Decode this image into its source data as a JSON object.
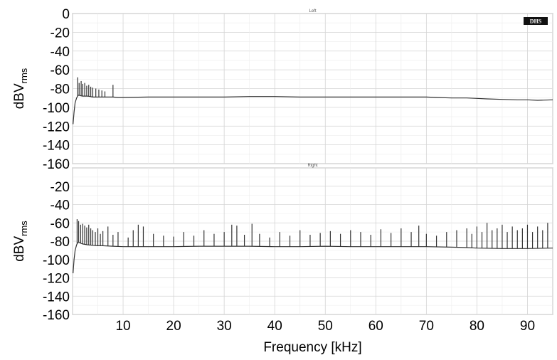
{
  "chart_data": [
    {
      "type": "line",
      "title": "Left",
      "xlabel": "Frequency [kHz]",
      "ylabel": "dBV",
      "ylabel_sub": "rms",
      "xlim": [
        0,
        95
      ],
      "ylim": [
        -160,
        0
      ],
      "x_ticks": [
        10,
        20,
        30,
        40,
        50,
        60,
        70,
        80,
        90
      ],
      "y_ticks": [
        0,
        -20,
        -40,
        -60,
        -80,
        -100,
        -120,
        -140,
        -160
      ],
      "grid": true,
      "logo": "DHS",
      "series": [
        {
          "x": [
            0.1,
            0.3,
            0.5,
            0.8,
            1.0,
            1.2,
            1.5,
            2.0,
            2.5,
            3.0,
            3.5,
            4.0,
            5.0,
            6.0,
            7.0,
            8.0,
            9.0,
            10,
            15,
            20,
            25,
            30,
            35,
            40,
            45,
            50,
            55,
            60,
            65,
            70,
            72,
            75,
            78,
            80,
            82,
            85,
            88,
            90,
            92,
            95
          ],
          "y": [
            -118,
            -105,
            -95,
            -90,
            -88,
            -87,
            -87.5,
            -88,
            -88,
            -88,
            -88.5,
            -89,
            -89,
            -89,
            -89,
            -89,
            -89.5,
            -89.5,
            -89,
            -89,
            -89,
            -89,
            -88.5,
            -88.5,
            -89,
            -89,
            -89,
            -89,
            -89,
            -89,
            -89.5,
            -90,
            -90,
            -90.5,
            -91,
            -91.5,
            -92,
            -92,
            -92.5,
            -92
          ]
        }
      ],
      "spikes": [
        {
          "x": 1.0,
          "y": -68
        },
        {
          "x": 1.3,
          "y": -74
        },
        {
          "x": 1.7,
          "y": -72
        },
        {
          "x": 2.0,
          "y": -75
        },
        {
          "x": 2.4,
          "y": -74
        },
        {
          "x": 2.8,
          "y": -77
        },
        {
          "x": 3.2,
          "y": -76
        },
        {
          "x": 3.6,
          "y": -78
        },
        {
          "x": 4.0,
          "y": -79
        },
        {
          "x": 4.6,
          "y": -80
        },
        {
          "x": 5.2,
          "y": -81
        },
        {
          "x": 5.8,
          "y": -82
        },
        {
          "x": 6.4,
          "y": -83
        },
        {
          "x": 8.0,
          "y": -76
        }
      ]
    },
    {
      "type": "line",
      "title": "Right",
      "xlabel": "Frequency [kHz]",
      "ylabel": "dBV",
      "ylabel_sub": "rms",
      "xlim": [
        0,
        95
      ],
      "ylim": [
        -160,
        0
      ],
      "x_ticks": [
        10,
        20,
        30,
        40,
        50,
        60,
        70,
        80,
        90
      ],
      "y_ticks": [
        -20,
        -40,
        -60,
        -80,
        -100,
        -120,
        -140,
        -160
      ],
      "grid": true,
      "series": [
        {
          "x": [
            0.1,
            0.3,
            0.5,
            0.8,
            1.0,
            1.2,
            1.5,
            2.0,
            3.0,
            4.0,
            5.0,
            6.0,
            8.0,
            10,
            15,
            20,
            25,
            30,
            35,
            40,
            45,
            50,
            55,
            60,
            65,
            70,
            75,
            78,
            80,
            85,
            90,
            95
          ],
          "y": [
            -115,
            -100,
            -90,
            -84,
            -82,
            -81,
            -82,
            -83,
            -84,
            -84.5,
            -85,
            -85,
            -85.5,
            -86,
            -86,
            -86,
            -85.5,
            -85.5,
            -85.5,
            -86,
            -86,
            -85.5,
            -86,
            -86,
            -86,
            -86,
            -86.5,
            -87,
            -87.5,
            -88,
            -88,
            -87.5
          ]
        }
      ],
      "spikes": [
        {
          "x": 0.9,
          "y": -56
        },
        {
          "x": 1.2,
          "y": -58
        },
        {
          "x": 1.6,
          "y": -62
        },
        {
          "x": 2.0,
          "y": -61
        },
        {
          "x": 2.4,
          "y": -63
        },
        {
          "x": 2.8,
          "y": -65
        },
        {
          "x": 3.2,
          "y": -62
        },
        {
          "x": 3.6,
          "y": -66
        },
        {
          "x": 4.0,
          "y": -68
        },
        {
          "x": 4.5,
          "y": -70
        },
        {
          "x": 5.0,
          "y": -66
        },
        {
          "x": 5.5,
          "y": -72
        },
        {
          "x": 6.0,
          "y": -69
        },
        {
          "x": 7.0,
          "y": -64
        },
        {
          "x": 8.0,
          "y": -73
        },
        {
          "x": 9.0,
          "y": -70
        },
        {
          "x": 11.0,
          "y": -76
        },
        {
          "x": 12.0,
          "y": -68
        },
        {
          "x": 13.0,
          "y": -62
        },
        {
          "x": 14.0,
          "y": -64
        },
        {
          "x": 16.0,
          "y": -72
        },
        {
          "x": 18.0,
          "y": -74
        },
        {
          "x": 20.0,
          "y": -75
        },
        {
          "x": 22.0,
          "y": -70
        },
        {
          "x": 24.0,
          "y": -74
        },
        {
          "x": 26.0,
          "y": -68
        },
        {
          "x": 28.0,
          "y": -72
        },
        {
          "x": 30.0,
          "y": -70
        },
        {
          "x": 31.5,
          "y": -62
        },
        {
          "x": 32.5,
          "y": -63
        },
        {
          "x": 34.0,
          "y": -73
        },
        {
          "x": 35.5,
          "y": -61
        },
        {
          "x": 37.0,
          "y": -72
        },
        {
          "x": 39.0,
          "y": -76
        },
        {
          "x": 41.0,
          "y": -70
        },
        {
          "x": 43.0,
          "y": -74
        },
        {
          "x": 45.0,
          "y": -68
        },
        {
          "x": 47.0,
          "y": -73
        },
        {
          "x": 49.0,
          "y": -71
        },
        {
          "x": 51.0,
          "y": -69
        },
        {
          "x": 53.0,
          "y": -72
        },
        {
          "x": 55.0,
          "y": -68
        },
        {
          "x": 57.0,
          "y": -70
        },
        {
          "x": 59.0,
          "y": -73
        },
        {
          "x": 61.0,
          "y": -67
        },
        {
          "x": 63.0,
          "y": -71
        },
        {
          "x": 65.0,
          "y": -66
        },
        {
          "x": 67.0,
          "y": -70
        },
        {
          "x": 68.5,
          "y": -63
        },
        {
          "x": 70.0,
          "y": -72
        },
        {
          "x": 72.0,
          "y": -74
        },
        {
          "x": 74.0,
          "y": -70
        },
        {
          "x": 76.0,
          "y": -68
        },
        {
          "x": 78.0,
          "y": -66
        },
        {
          "x": 79.0,
          "y": -72
        },
        {
          "x": 80.0,
          "y": -64
        },
        {
          "x": 81.0,
          "y": -70
        },
        {
          "x": 82.0,
          "y": -60
        },
        {
          "x": 83.0,
          "y": -68
        },
        {
          "x": 84.0,
          "y": -66
        },
        {
          "x": 85.0,
          "y": -62
        },
        {
          "x": 86.0,
          "y": -70
        },
        {
          "x": 87.0,
          "y": -64
        },
        {
          "x": 88.0,
          "y": -68
        },
        {
          "x": 89.0,
          "y": -66
        },
        {
          "x": 90.0,
          "y": -62
        },
        {
          "x": 91.0,
          "y": -70
        },
        {
          "x": 92.0,
          "y": -64
        },
        {
          "x": 93.0,
          "y": -68
        },
        {
          "x": 94.0,
          "y": -60
        }
      ]
    }
  ]
}
